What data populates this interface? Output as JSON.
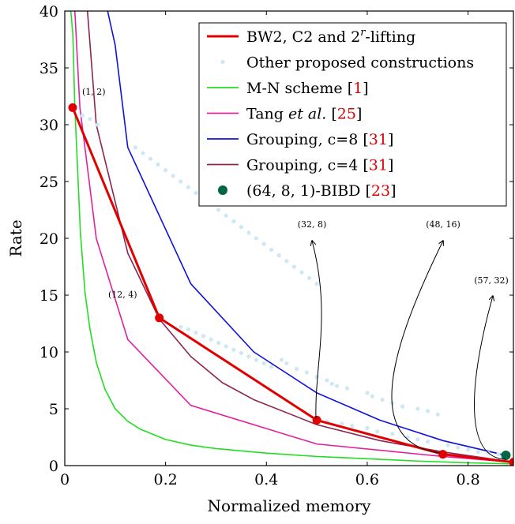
{
  "chart_data": {
    "type": "line",
    "xlabel": "Normalized memory",
    "ylabel": "Rate",
    "xlim": [
      0,
      0.89
    ],
    "ylim": [
      0,
      40
    ],
    "xticks": [
      "0",
      "0.2",
      "0.4",
      "0.6",
      "0.8"
    ],
    "yticks": [
      "0",
      "5",
      "10",
      "15",
      "20",
      "25",
      "30",
      "35",
      "40"
    ],
    "grid": false,
    "legend_position": "top-right",
    "series": [
      {
        "name": "BW2, C2 and 2^r-lifting",
        "legend_parts": [
          "BW2, C2 and ",
          "2",
          "r",
          "-lifting"
        ],
        "color": "#e00000",
        "style": "line-markers",
        "x": [
          0.0156,
          0.1875,
          0.5,
          0.75,
          0.89
        ],
        "y": [
          31.5,
          13.0,
          4.0,
          1.0,
          0.3
        ]
      },
      {
        "name": "Other proposed constructions",
        "color": "#cce8f4",
        "style": "dots",
        "x": [
          0.02,
          0.035,
          0.05,
          0.065,
          0.14,
          0.155,
          0.17,
          0.185,
          0.2,
          0.215,
          0.23,
          0.245,
          0.26,
          0.275,
          0.29,
          0.305,
          0.32,
          0.335,
          0.35,
          0.365,
          0.38,
          0.395,
          0.41,
          0.425,
          0.44,
          0.455,
          0.47,
          0.485,
          0.5,
          0.23,
          0.245,
          0.26,
          0.275,
          0.29,
          0.305,
          0.32,
          0.335,
          0.35,
          0.365,
          0.38,
          0.395,
          0.41,
          0.43,
          0.44,
          0.46,
          0.48,
          0.5,
          0.52,
          0.53,
          0.54,
          0.56,
          0.6,
          0.61,
          0.63,
          0.65,
          0.67,
          0.7,
          0.72,
          0.74,
          0.52,
          0.55,
          0.57,
          0.6,
          0.62,
          0.65,
          0.68,
          0.7,
          0.72,
          0.76,
          0.78,
          0.8,
          0.82,
          0.84,
          0.86,
          0.875
        ],
        "y": [
          31.2,
          30.8,
          30.5,
          30.0,
          28.0,
          27.5,
          27.0,
          26.5,
          26.0,
          25.5,
          25.0,
          24.5,
          24.0,
          23.5,
          23.0,
          22.5,
          22.0,
          21.5,
          21.0,
          20.5,
          20.0,
          19.5,
          19.0,
          18.5,
          18.0,
          17.5,
          17.0,
          16.5,
          16.0,
          12.2,
          12.0,
          11.7,
          11.4,
          11.1,
          10.8,
          10.5,
          10.2,
          9.9,
          9.6,
          9.3,
          9.0,
          8.7,
          9.3,
          9.0,
          8.5,
          8.2,
          7.8,
          7.5,
          7.2,
          7.0,
          6.8,
          6.4,
          6.1,
          5.8,
          5.5,
          5.2,
          5.0,
          4.8,
          4.5,
          3.9,
          3.7,
          3.5,
          3.3,
          3.0,
          2.8,
          2.5,
          2.3,
          2.1,
          1.8,
          1.6,
          1.4,
          1.2,
          1.1,
          1.0,
          0.9
        ]
      },
      {
        "name": "M-N scheme [1]",
        "legend_parts": [
          "M-N scheme ",
          "[",
          "1",
          "]"
        ],
        "color": "#22dd22",
        "style": "line",
        "x": [
          0.012,
          0.016,
          0.02,
          0.025,
          0.031,
          0.04,
          0.05,
          0.063,
          0.08,
          0.1,
          0.125,
          0.15,
          0.2,
          0.25,
          0.3,
          0.4,
          0.5,
          0.6,
          0.7,
          0.8,
          0.89
        ],
        "y": [
          40,
          38,
          31.5,
          26.5,
          20.5,
          15.3,
          12.0,
          9.0,
          6.7,
          5.0,
          3.9,
          3.2,
          2.3,
          1.8,
          1.5,
          1.1,
          0.8,
          0.6,
          0.4,
          0.25,
          0.15
        ]
      },
      {
        "name": "Tang et al. [25]",
        "legend_parts": [
          "Tang ",
          "et al.",
          " [",
          "25",
          "]"
        ],
        "color": "#e020a0",
        "style": "line",
        "x": [
          0.02,
          0.03,
          0.04,
          0.0625,
          0.125,
          0.25,
          0.5,
          0.75,
          0.89
        ],
        "y": [
          40,
          31.5,
          28.0,
          20.0,
          11.1,
          5.3,
          1.9,
          0.8,
          0.3
        ]
      },
      {
        "name": "Grouping, c=8 [31]",
        "legend_parts": [
          "Grouping, c=8 ",
          "[",
          "31",
          "]"
        ],
        "color": "#1010dd",
        "style": "line",
        "x": [
          0.085,
          0.1,
          0.125,
          0.25,
          0.375,
          0.5,
          0.625,
          0.75,
          0.875
        ],
        "y": [
          40,
          37.0,
          28.0,
          16.0,
          10.0,
          6.4,
          4.0,
          2.2,
          0.9
        ]
      },
      {
        "name": "Grouping, c=4 [31]",
        "legend_parts": [
          "Grouping, c=4 ",
          "[",
          "31",
          "]"
        ],
        "color": "#8c2550",
        "style": "line",
        "x": [
          0.045,
          0.0625,
          0.125,
          0.1875,
          0.25,
          0.3125,
          0.375,
          0.5,
          0.625,
          0.75,
          0.875
        ],
        "y": [
          40,
          30.0,
          18.7,
          12.9,
          9.6,
          7.3,
          5.8,
          3.6,
          2.2,
          1.2,
          0.4
        ]
      },
      {
        "name": "(64, 8, 1)-BIBD [23]",
        "legend_parts": [
          "(64, 8, 1)-BIBD ",
          "[",
          "23",
          "]"
        ],
        "color": "#006644",
        "style": "marker",
        "x": [
          0.875
        ],
        "y": [
          0.9
        ]
      }
    ],
    "annotations": [
      {
        "text": "(1, 2)",
        "target": [
          0.0156,
          31.5
        ],
        "arrow": false
      },
      {
        "text": "(12, 4)",
        "target": [
          0.1875,
          13.0
        ],
        "arrow": false
      },
      {
        "text": "(32, 8)",
        "target": [
          0.5,
          4.0
        ],
        "arrow": true
      },
      {
        "text": "(48, 16)",
        "target": [
          0.75,
          1.0
        ],
        "arrow": true
      },
      {
        "text": "(57, 32)",
        "target": [
          0.875,
          0.5
        ],
        "arrow": true
      }
    ]
  }
}
